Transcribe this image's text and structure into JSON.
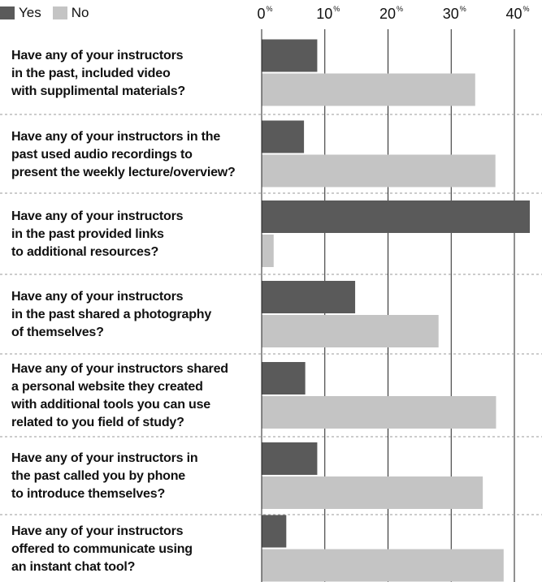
{
  "legend": [
    {
      "label": "Yes",
      "color": "#5a5a5a"
    },
    {
      "label": "No",
      "color": "#c4c4c4"
    }
  ],
  "chart_data": {
    "type": "bar",
    "orientation": "horizontal",
    "ticks": [
      {
        "value": 0,
        "label": "0",
        "unit": "%"
      },
      {
        "value": 10,
        "label": "10",
        "unit": "%"
      },
      {
        "value": 20,
        "label": "20",
        "unit": "%"
      },
      {
        "value": 30,
        "label": "30",
        "unit": "%"
      },
      {
        "value": 40,
        "label": "40",
        "unit": "%"
      }
    ],
    "xlim": [
      0,
      42
    ],
    "grid": true,
    "legend_position": "top-left",
    "categories": [
      {
        "lines": [
          "Have any of your instructors",
          "in the past, included video",
          "with supplimental materials?"
        ]
      },
      {
        "lines": [
          "Have any of your instructors in the",
          "past used audio recordings to",
          "present the weekly lecture/overview?"
        ]
      },
      {
        "lines": [
          "Have any of your instructors",
          "in the past provided links",
          "to additional resources?"
        ]
      },
      {
        "lines": [
          "Have any of your instructors",
          "in the past shared a photography",
          "of themselves?"
        ]
      },
      {
        "lines": [
          "Have any of your instructors shared",
          "a personal website they created",
          "with additional tools you can use",
          "related to you field of study?"
        ]
      },
      {
        "lines": [
          "Have any of your instructors in",
          "the past called you by phone",
          "to introduce themselves?"
        ]
      },
      {
        "lines": [
          "Have any of your instructors",
          "offered to communicate using",
          "an instant chat tool?"
        ]
      }
    ],
    "series": [
      {
        "name": "Yes",
        "color": "#5a5a5a",
        "values": [
          8.8,
          6.7,
          42.5,
          14.8,
          6.9,
          8.8,
          3.9
        ]
      },
      {
        "name": "No",
        "color": "#c4c4c4",
        "values": [
          33.8,
          37.0,
          1.9,
          28.0,
          37.1,
          35.0,
          38.3
        ]
      }
    ]
  }
}
